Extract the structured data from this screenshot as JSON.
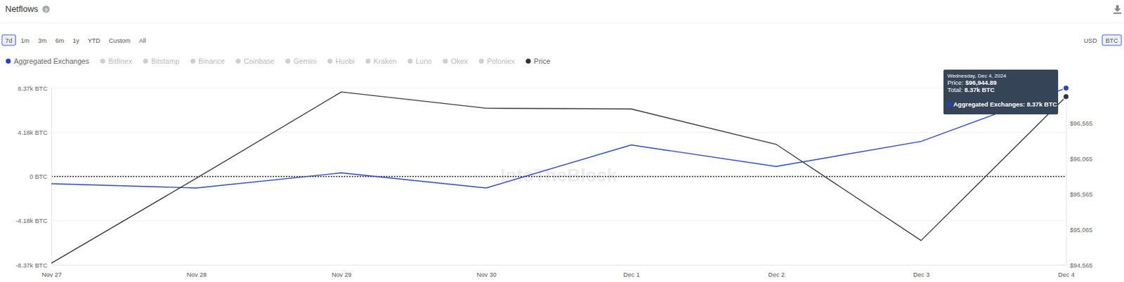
{
  "chart_data": {
    "type": "line",
    "title": "Netflows",
    "categories": [
      "Nov 27",
      "Nov 28",
      "Nov 29",
      "Nov 30",
      "Dec 1",
      "Dec 2",
      "Dec 3",
      "Dec 4"
    ],
    "series": [
      {
        "name": "Aggregated Exchanges",
        "color": "#2342c6",
        "values": [
          -680,
          -1085,
          340,
          -1085,
          2985,
          950,
          3320,
          8370
        ]
      },
      {
        "name": "Price",
        "color": "#333333",
        "axis": "y2",
        "values": [
          94590,
          95790,
          97010,
          96780,
          96770,
          96270,
          94910,
          96944.89
        ]
      }
    ],
    "ylim": [
      -8370,
      8370
    ],
    "yticks": [
      {
        "value": 8370,
        "label": "8.37k BTC"
      },
      {
        "value": 4185,
        "label": "4.18k BTC"
      },
      {
        "value": 0,
        "label": "0 BTC"
      },
      {
        "value": -4185,
        "label": "-4.18k BTC"
      },
      {
        "value": -8370,
        "label": "-8.37k BTC"
      }
    ],
    "y2lim": [
      94565,
      97065
    ],
    "y2ticks": [
      {
        "value": 96565,
        "label": "$96,565"
      },
      {
        "value": 96065,
        "label": "$96,065"
      },
      {
        "value": 95565,
        "label": "$95,565"
      },
      {
        "value": 95065,
        "label": "$95,065"
      },
      {
        "value": 94565,
        "label": "$94,565"
      }
    ],
    "grid": true,
    "legend": "top"
  },
  "controls": {
    "help": "?",
    "ranges": [
      "7d",
      "1m",
      "3m",
      "6m",
      "1y",
      "YTD",
      "Custom",
      "All"
    ],
    "selected_range": "7d",
    "units": [
      "USD",
      "BTC"
    ],
    "selected_unit": "BTC",
    "inactive_series": [
      "Bitfinex",
      "Bitstamp",
      "Binance",
      "Coinbase",
      "Gemini",
      "Huobi",
      "Kraken",
      "Luno",
      "Okex",
      "Poloniex"
    ]
  },
  "watermark": "IntoTheBlock",
  "tooltip": {
    "title": "Wednesday, Dec 4, 2024",
    "rows": [
      {
        "label": "Price:",
        "value": "$96,944.89"
      },
      {
        "label": "Total:",
        "value": "8.37k BTC"
      }
    ],
    "series_row": "Aggregated Exchanges: 8.37k BTC"
  }
}
